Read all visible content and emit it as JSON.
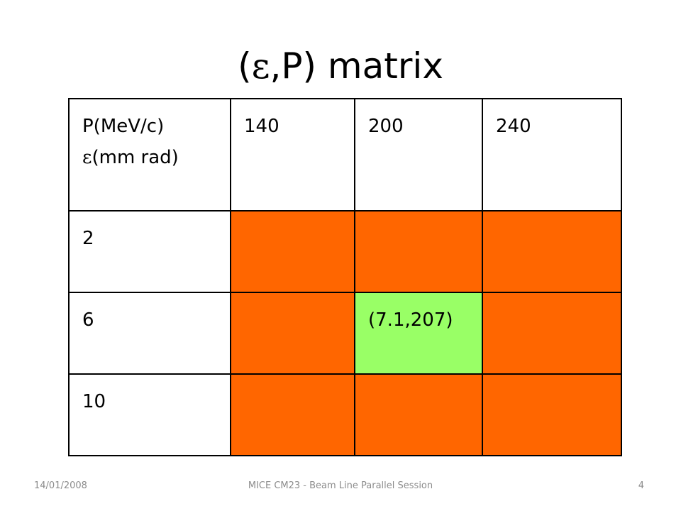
{
  "slide": {
    "title_prefix": "(",
    "title_epsilon": "ε",
    "title_rest": ",P) matrix"
  },
  "table": {
    "header": {
      "label_line1": "P(MeV/c)",
      "label_eps": "ε",
      "label_line2_rest": "(mm rad)",
      "columns": [
        "140",
        "200",
        "240"
      ]
    },
    "rows": [
      {
        "label": "2",
        "cells": [
          "",
          "",
          ""
        ]
      },
      {
        "label": "6",
        "cells": [
          "",
          "(7.1,207)",
          ""
        ]
      },
      {
        "label": "10",
        "cells": [
          "",
          "",
          ""
        ]
      }
    ],
    "fill_color": "#ff6600",
    "highlight_color": "#99ff66",
    "highlight_border_color": "#e6af46"
  },
  "footer": {
    "date": "14/01/2008",
    "center": "MICE CM23 - Beam Line Parallel Session",
    "page_number": "4"
  }
}
